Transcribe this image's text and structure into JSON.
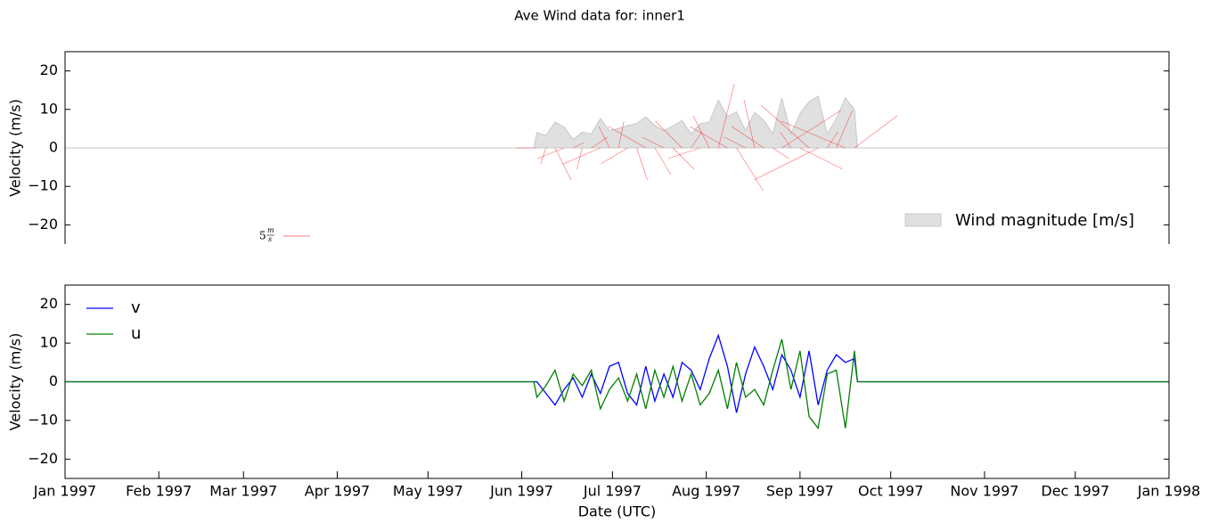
{
  "title": "Ave Wind data for:   inner1",
  "chart_data": [
    {
      "type": "area",
      "ylabel": "Velocity (m/s)",
      "x": [
        0,
        155,
        156,
        159,
        162,
        165,
        168,
        171,
        174,
        177,
        180,
        183,
        186,
        189,
        192,
        195,
        198,
        201,
        204,
        207,
        210,
        213,
        216,
        219,
        222,
        225,
        228,
        231,
        234,
        237,
        240,
        243,
        246,
        249,
        252,
        255,
        258,
        261,
        262,
        365
      ],
      "series": [
        {
          "name": "Wind magnitude [m/s]",
          "color": "#e0e0e0",
          "values": [
            0,
            0,
            4,
            3.2,
            6.7,
            5.4,
            2.2,
            4.1,
            3.6,
            7.6,
            4.5,
            5.1,
            5.8,
            6.3,
            8.1,
            5.8,
            4.5,
            5.7,
            7.1,
            3.6,
            6.3,
            6.7,
            12.4,
            8.1,
            9.4,
            4.5,
            9.2,
            7.2,
            3.6,
            13,
            3.6,
            8.9,
            12,
            13.4,
            3.6,
            7.6,
            13,
            10,
            0,
            0
          ]
        }
      ],
      "quiver_color": "#ff0000",
      "quiver_key_value": 5,
      "quiver_key_unit_top": "m",
      "quiver_key_unit_bottom": "s",
      "xlim": [
        0,
        365
      ],
      "ylim": [
        -25,
        25
      ],
      "yticks": [
        {
          "value": -20,
          "label": "−20"
        },
        {
          "value": -10,
          "label": "−10"
        },
        0,
        10,
        20
      ],
      "legend": "lower right"
    },
    {
      "type": "line",
      "ylabel": "Velocity (m/s)",
      "xlabel": "Date (UTC)",
      "x": [
        0,
        155,
        156,
        159,
        162,
        165,
        168,
        171,
        174,
        177,
        180,
        183,
        186,
        189,
        192,
        195,
        198,
        201,
        204,
        207,
        210,
        213,
        216,
        219,
        222,
        225,
        228,
        231,
        234,
        237,
        240,
        243,
        246,
        249,
        252,
        255,
        258,
        261,
        262,
        365
      ],
      "series": [
        {
          "name": "v",
          "color": "#0000ff",
          "values": [
            0,
            0,
            0,
            -3,
            -6,
            -2,
            1,
            -4,
            2,
            -3,
            4,
            5,
            -3,
            -6,
            4,
            -5,
            2,
            -4,
            5,
            3,
            -2,
            6,
            12,
            4,
            -8,
            2,
            9,
            4,
            -2,
            7,
            3,
            -4,
            8,
            -6,
            3,
            7,
            5,
            6,
            0,
            0
          ]
        },
        {
          "name": "u",
          "color": "#007f00",
          "values": [
            0,
            0,
            -4,
            -1,
            3,
            -5,
            2,
            -1,
            3,
            -7,
            -2,
            1,
            -5,
            2,
            -7,
            3,
            -4,
            4,
            -5,
            2,
            -6,
            -3,
            3,
            -7,
            5,
            -4,
            -2,
            -6,
            3,
            11,
            -2,
            8,
            -9,
            -12,
            2,
            3,
            -12,
            8,
            0,
            0
          ]
        }
      ],
      "xlim": [
        0,
        365
      ],
      "xticks": [
        {
          "value": 0,
          "label": "Jan 1997"
        },
        {
          "value": 31,
          "label": "Feb 1997"
        },
        {
          "value": 59,
          "label": "Mar 1997"
        },
        {
          "value": 90,
          "label": "Apr 1997"
        },
        {
          "value": 120,
          "label": "May 1997"
        },
        {
          "value": 151,
          "label": "Jun 1997"
        },
        {
          "value": 181,
          "label": "Jul 1997"
        },
        {
          "value": 212,
          "label": "Aug 1997"
        },
        {
          "value": 243,
          "label": "Sep 1997"
        },
        {
          "value": 273,
          "label": "Oct 1997"
        },
        {
          "value": 304,
          "label": "Nov 1997"
        },
        {
          "value": 334,
          "label": "Dec 1997"
        },
        {
          "value": 365,
          "label": "Jan 1998"
        }
      ],
      "ylim": [
        -25,
        25
      ],
      "yticks": [
        {
          "value": -20,
          "label": "−20"
        },
        {
          "value": -10,
          "label": "−10"
        },
        0,
        10,
        20
      ],
      "legend": "upper left"
    }
  ]
}
